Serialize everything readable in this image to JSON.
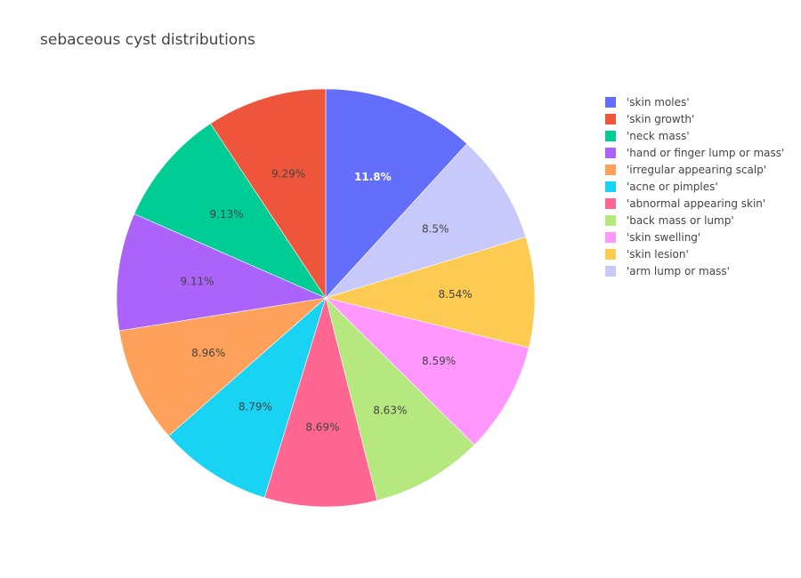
{
  "chart_data": {
    "type": "pie",
    "title": "sebaceous cyst distributions",
    "direction": "clockwise",
    "start": "12 o'clock",
    "slices": [
      {
        "label": "'skin moles'",
        "percent": 11.8,
        "text": "11.8%",
        "color": "#636efa",
        "text_color": "#ffffff",
        "text_bold": true
      },
      {
        "label": "'arm lump or mass'",
        "percent": 8.5,
        "text": "8.5%",
        "color": "#c8c9fb",
        "text_color": "#444444"
      },
      {
        "label": "'skin lesion'",
        "percent": 8.54,
        "text": "8.54%",
        "color": "#fecb52",
        "text_color": "#444444"
      },
      {
        "label": "'skin swelling'",
        "percent": 8.59,
        "text": "8.59%",
        "color": "#ff97ff",
        "text_color": "#444444"
      },
      {
        "label": "'back mass or lump'",
        "percent": 8.63,
        "text": "8.63%",
        "color": "#b6e880",
        "text_color": "#444444"
      },
      {
        "label": "'abnormal appearing skin'",
        "percent": 8.69,
        "text": "8.69%",
        "color": "#ff6692",
        "text_color": "#444444"
      },
      {
        "label": "'acne or pimples'",
        "percent": 8.79,
        "text": "8.79%",
        "color": "#19d3f3",
        "text_color": "#444444"
      },
      {
        "label": "'irregular appearing scalp'",
        "percent": 8.96,
        "text": "8.96%",
        "color": "#ffa15a",
        "text_color": "#444444"
      },
      {
        "label": "'hand or finger lump or mass'",
        "percent": 9.11,
        "text": "9.11%",
        "color": "#ab63fa",
        "text_color": "#444444"
      },
      {
        "label": "'neck mass'",
        "percent": 9.13,
        "text": "9.13%",
        "color": "#00cc96",
        "text_color": "#444444"
      },
      {
        "label": "'skin growth'",
        "percent": 9.29,
        "text": "9.29%",
        "color": "#ef553b",
        "text_color": "#444444"
      }
    ],
    "legend": {
      "placement": "top-right",
      "order": [
        "'skin moles'",
        "'skin growth'",
        "'neck mass'",
        "'hand or finger lump or mass'",
        "'irregular appearing scalp'",
        "'acne or pimples'",
        "'abnormal appearing skin'",
        "'back mass or lump'",
        "'skin swelling'",
        "'skin lesion'",
        "'arm lump or mass'"
      ]
    }
  }
}
